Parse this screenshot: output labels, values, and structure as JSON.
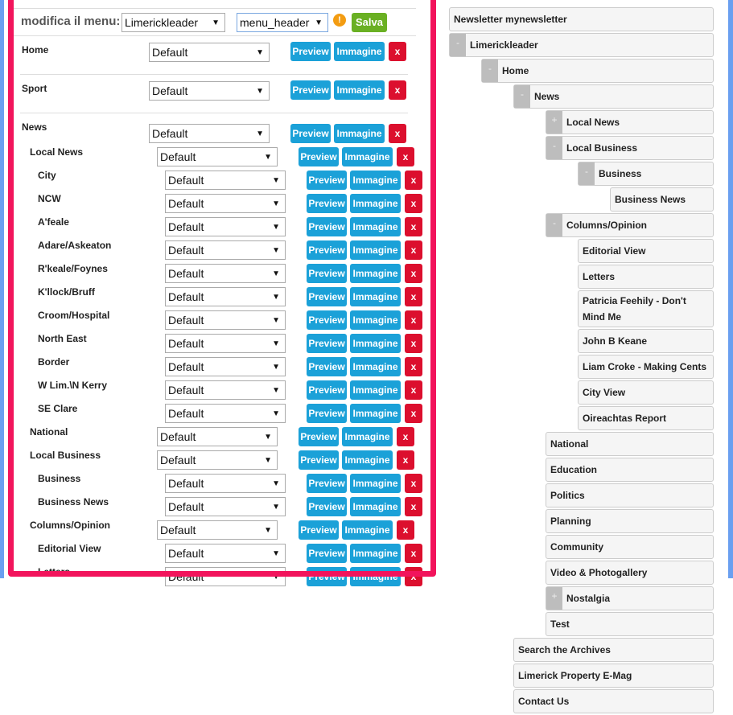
{
  "header": {
    "label": "modifica il menu:",
    "site_select": "Limerickleader",
    "menu_select": "menu_header",
    "info_icon": "!",
    "save_label": "Salva"
  },
  "buttons": {
    "preview": "Preview",
    "image": "Immagine",
    "delete": "x"
  },
  "rows": [
    {
      "name": "Home",
      "level": 0,
      "value": "Default",
      "sep": true
    },
    {
      "name": "Sport",
      "level": 0,
      "value": "Default",
      "sep": true
    },
    {
      "name": "News",
      "level": 0,
      "value": "Default",
      "sep": false
    },
    {
      "name": "Local News",
      "level": 1,
      "value": "Default"
    },
    {
      "name": "City",
      "level": 2,
      "value": "Default"
    },
    {
      "name": "NCW",
      "level": 2,
      "value": "Default"
    },
    {
      "name": "A'feale",
      "level": 2,
      "value": "Default"
    },
    {
      "name": "Adare/Askeaton",
      "level": 2,
      "value": "Default"
    },
    {
      "name": "R'keale/Foynes",
      "level": 2,
      "value": "Default"
    },
    {
      "name": "K'llock/Bruff",
      "level": 2,
      "value": "Default"
    },
    {
      "name": "Croom/Hospital",
      "level": 2,
      "value": "Default"
    },
    {
      "name": "North East",
      "level": 2,
      "value": "Default"
    },
    {
      "name": "Border",
      "level": 2,
      "value": "Default"
    },
    {
      "name": "W Lim.\\N Kerry",
      "level": 2,
      "value": "Default"
    },
    {
      "name": "SE Clare",
      "level": 2,
      "value": "Default"
    },
    {
      "name": "National",
      "level": 1,
      "value": "Default"
    },
    {
      "name": "Local Business",
      "level": 1,
      "value": "Default"
    },
    {
      "name": "Business",
      "level": 2,
      "value": "Default"
    },
    {
      "name": "Business News",
      "level": 2,
      "value": "Default"
    },
    {
      "name": "Columns/Opinion",
      "level": 1,
      "value": "Default"
    },
    {
      "name": "Editorial View",
      "level": 2,
      "value": "Default"
    },
    {
      "name": "Letters",
      "level": 2,
      "value": "Default"
    }
  ],
  "tree": [
    {
      "label": "Newsletter mynewsletter",
      "depth": 0,
      "toggle": ""
    },
    {
      "label": "Limerickleader",
      "depth": 0,
      "toggle": "-"
    },
    {
      "label": "Home",
      "depth": 1,
      "toggle": "-"
    },
    {
      "label": "News",
      "depth": 2,
      "toggle": "-"
    },
    {
      "label": "Local News",
      "depth": 3,
      "toggle": "+"
    },
    {
      "label": "Local Business",
      "depth": 3,
      "toggle": "-"
    },
    {
      "label": "Business",
      "depth": 4,
      "toggle": "-"
    },
    {
      "label": "Business News",
      "depth": 5,
      "toggle": ""
    },
    {
      "label": "Columns/Opinion",
      "depth": 3,
      "toggle": "-"
    },
    {
      "label": "Editorial View",
      "depth": 4,
      "toggle": ""
    },
    {
      "label": "Letters",
      "depth": 4,
      "toggle": ""
    },
    {
      "label": "Patricia Feehily - Don't Mind Me",
      "depth": 4,
      "toggle": ""
    },
    {
      "label": "John B Keane",
      "depth": 4,
      "toggle": ""
    },
    {
      "label": "Liam Croke - Making Cents",
      "depth": 4,
      "toggle": ""
    },
    {
      "label": "City View",
      "depth": 4,
      "toggle": ""
    },
    {
      "label": "Oireachtas Report",
      "depth": 4,
      "toggle": ""
    },
    {
      "label": "National",
      "depth": 3,
      "toggle": ""
    },
    {
      "label": "Education",
      "depth": 3,
      "toggle": ""
    },
    {
      "label": "Politics",
      "depth": 3,
      "toggle": ""
    },
    {
      "label": "Planning",
      "depth": 3,
      "toggle": ""
    },
    {
      "label": "Community",
      "depth": 3,
      "toggle": ""
    },
    {
      "label": "Video & Photogallery",
      "depth": 3,
      "toggle": ""
    },
    {
      "label": "Nostalgia",
      "depth": 3,
      "toggle": "+"
    },
    {
      "label": "Test",
      "depth": 3,
      "toggle": ""
    },
    {
      "label": "Search the Archives",
      "depth": 2,
      "toggle": ""
    },
    {
      "label": "Limerick Property E-Mag",
      "depth": 2,
      "toggle": ""
    },
    {
      "label": "Contact Us",
      "depth": 2,
      "toggle": ""
    }
  ]
}
